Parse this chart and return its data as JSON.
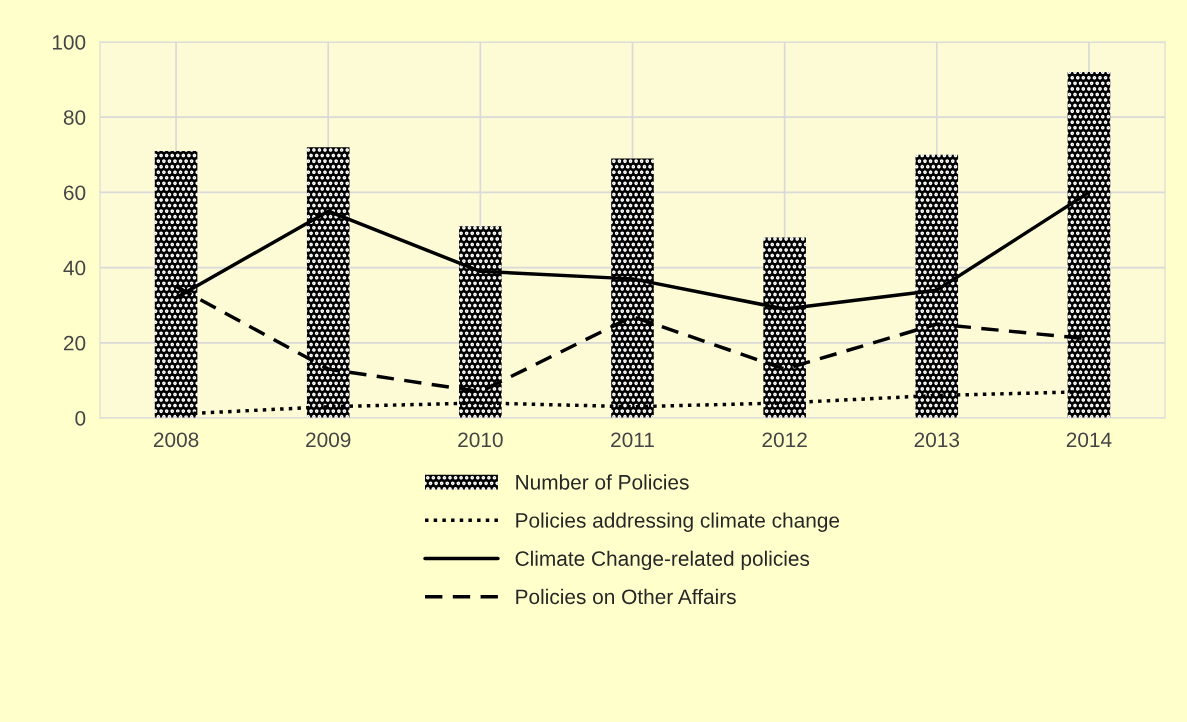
{
  "chart_data": {
    "type": "bar",
    "categories": [
      "2008",
      "2009",
      "2010",
      "2011",
      "2012",
      "2013",
      "2014"
    ],
    "series": [
      {
        "name": "Number of Policies",
        "color": "#000000",
        "values": [
          71,
          72,
          51,
          69,
          48,
          70,
          92
        ]
      },
      {
        "name": "Policies addressing climate change",
        "type": "line",
        "line_style": "dotted",
        "color": "#000000",
        "values": [
          1,
          3,
          4,
          3,
          4,
          6,
          7
        ]
      },
      {
        "name": "Climate Change-related policies",
        "type": "line",
        "line_style": "solid",
        "color": "#000000",
        "values": [
          32,
          55,
          39,
          37,
          29,
          34,
          60
        ]
      },
      {
        "name": "Policies on Other Affairs",
        "type": "line",
        "line_style": "dashed",
        "color": "#000000",
        "values": [
          35,
          13,
          7,
          27,
          13,
          25,
          21
        ]
      }
    ],
    "ylim": [
      0,
      100
    ],
    "yticks": [
      0,
      20,
      40,
      60,
      80,
      100
    ],
    "grid": true,
    "legend": "bottom"
  }
}
